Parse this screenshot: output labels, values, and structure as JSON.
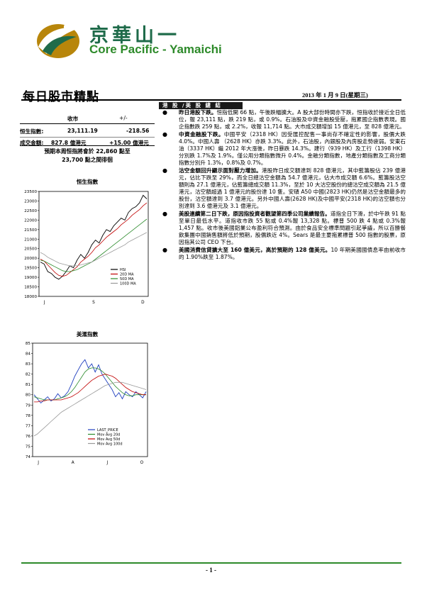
{
  "header": {
    "brand_cn": "京華山一",
    "brand_en": "Core Pacific - Yamaichi",
    "doc_title": "每日股市精點",
    "date": "2013 年 1 月 9 日(星期三)"
  },
  "market_table": {
    "col_close": "收市",
    "col_change": "+/-",
    "rows": [
      {
        "label": "恒生指數:",
        "close": "23,111.19",
        "change": "-218.56"
      },
      {
        "label": "成交金額:",
        "close": "827.8 億港元",
        "change": "+15.00 億港元"
      }
    ],
    "forecast_line1": "預期本周恒指將會於 22,860 點至",
    "forecast_line2": "23,700 點之間徘徊"
  },
  "hsi_chart": {
    "title": "恒生指數",
    "legend": [
      "HSI",
      "20D MA",
      "50D MA",
      "100D MA"
    ],
    "colors": {
      "price": "#000000",
      "ma20": "#c00000",
      "ma50": "#2a8a2a",
      "ma100": "#999999"
    }
  },
  "us_chart": {
    "title": "美滙指數",
    "legend": [
      "LAST_PRICE",
      "Mov Avg 20d",
      "Mov Avg 50d",
      "Mov Avg 100d"
    ],
    "colors": {
      "price": "#1f3fbf",
      "ma20": "#2a8a2a",
      "ma50": "#c00000",
      "ma100": "#999999"
    }
  },
  "chart_data": [
    {
      "type": "line",
      "title": "恒生指數",
      "x_ticks": [
        "J",
        "S",
        "D"
      ],
      "y_ticks": [
        18000,
        18500,
        19000,
        19500,
        20000,
        20500,
        21000,
        21500,
        22000,
        22500,
        23000,
        23500
      ],
      "ylim": [
        18000,
        23500
      ],
      "legend_position": "bottom-right",
      "series": [
        {
          "name": "HSI",
          "values": [
            19800,
            19700,
            19300,
            19200,
            19000,
            18900,
            19050,
            19300,
            19600,
            19500,
            19900,
            20200,
            20000,
            20300,
            20700,
            20950,
            20800,
            21200,
            21500,
            21400,
            21700,
            21900,
            22100,
            22000,
            22400,
            22600,
            22700,
            22900,
            23300,
            23111
          ]
        },
        {
          "name": "20D MA",
          "values": [
            19950,
            19850,
            19650,
            19450,
            19250,
            19100,
            19050,
            19100,
            19250,
            19400,
            19550,
            19800,
            19950,
            20100,
            20300,
            20550,
            20700,
            20900,
            21100,
            21250,
            21400,
            21550,
            21750,
            21900,
            22050,
            22250,
            22400,
            22550,
            22750,
            22900
          ]
        },
        {
          "name": "50D MA",
          "values": [
            19900,
            19850,
            19750,
            19650,
            19550,
            19450,
            19350,
            19300,
            19300,
            19350,
            19400,
            19500,
            19600,
            19700,
            19800,
            19950,
            20100,
            20250,
            20400,
            20550,
            20700,
            20850,
            21000,
            21150,
            21300,
            21450,
            21600,
            21750,
            21900,
            22050
          ]
        },
        {
          "name": "100D MA",
          "values": [
            20300,
            20200,
            20050,
            19950,
            19850,
            19750,
            19700,
            19650,
            19600,
            19600,
            19600,
            19650,
            19700,
            19750,
            19800,
            19900,
            20000,
            20100,
            20200,
            20300,
            20400,
            20500,
            20600,
            20700,
            20850,
            20950,
            21050,
            21150,
            21250,
            21350
          ]
        }
      ]
    },
    {
      "type": "line",
      "title": "美滙指數",
      "x_ticks": [
        "J",
        "A",
        "J",
        "O"
      ],
      "y_ticks": [
        74,
        75,
        76,
        77,
        78,
        79,
        80,
        81,
        82,
        83,
        84,
        85
      ],
      "ylim": [
        74,
        85
      ],
      "legend_position": "bottom-center",
      "series": [
        {
          "name": "LAST_PRICE",
          "values": [
            80.0,
            79.6,
            79.2,
            79.5,
            79.8,
            79.4,
            79.6,
            80.1,
            79.7,
            79.9,
            80.3,
            81.0,
            81.8,
            82.4,
            83.0,
            83.4,
            82.6,
            83.0,
            82.2,
            82.9,
            82.0,
            81.5,
            81.0,
            80.5,
            79.8,
            80.2,
            79.6,
            80.3,
            80.0,
            79.8,
            80.3,
            80.0,
            79.7,
            80.3
          ]
        },
        {
          "name": "Mov Avg 20d",
          "values": [
            79.8,
            79.7,
            79.6,
            79.5,
            79.5,
            79.5,
            79.5,
            79.6,
            79.7,
            79.8,
            80.0,
            80.3,
            80.7,
            81.2,
            81.7,
            82.2,
            82.5,
            82.6,
            82.6,
            82.5,
            82.3,
            82.0,
            81.6,
            81.2,
            80.8,
            80.5,
            80.2,
            80.0,
            79.9,
            79.9,
            80.0,
            80.0,
            80.0,
            80.0
          ]
        },
        {
          "name": "Mov Avg 50d",
          "values": [
            79.3,
            79.3,
            79.4,
            79.4,
            79.5,
            79.5,
            79.5,
            79.5,
            79.5,
            79.6,
            79.7,
            79.8,
            80.0,
            80.2,
            80.5,
            80.8,
            81.1,
            81.4,
            81.6,
            81.8,
            81.9,
            82.0,
            81.9,
            81.8,
            81.6,
            81.3,
            81.0,
            80.7,
            80.5,
            80.3,
            80.2,
            80.1,
            80.0,
            80.0
          ]
        },
        {
          "name": "Mov Avg 100d",
          "values": [
            76.0,
            76.2,
            76.5,
            76.8,
            77.1,
            77.4,
            77.7,
            78.0,
            78.3,
            78.5,
            78.7,
            78.9,
            79.1,
            79.3,
            79.5,
            79.7,
            79.9,
            80.1,
            80.3,
            80.5,
            80.7,
            80.9,
            81.0,
            81.1,
            81.2,
            81.2,
            81.2,
            81.1,
            81.0,
            80.9,
            80.8,
            80.7,
            80.6,
            80.5
          ]
        }
      ]
    }
  ],
  "section": {
    "label": "港 股 /美 股 總 結",
    "bullets": [
      {
        "lead": "昨日港股下跌。",
        "text": "恒指低開 66 點，午後跌幅擴大。A 股大部份時間亦下跌，恒指收於接近全日低位，報 23,111 點，跌 219 點，或 0.9%。石油股及中資金融股受壓，拖累國企指數表現。國企指數跌 259 點，或 2.2%，收報 11,714 點。大市成交額增加 15 億港元，至 828 億港元。"
      },
      {
        "lead": "中資金融股下跌。",
        "text": "中國平安（2318 HK）因受匯控配售一事尚存不確定性的影響，股價大跌 4.0%。中國人壽 （2628 HK）亦跌 3.3%。此外，石油股，內銀股及內房股走勢疲弱。安東石油（3337 HK）繼 2012 年大漲後，昨日暴跌 14.3%。建行（939 HK）及工行（1398 HK）分別跌 1.7%及 1.9%。僅公用分類指數微升 0.4%。金融分類指數，地產分類指數及工商分類指數分別升 1.3%，0.8%及 0.7%。"
      },
      {
        "lead": "沽空金額回升顯示面對壓力增加。",
        "text": "港股昨日成交額達到 828 億港元，其中藍籌股佔 239 億港元，佔比下跌至 29%，而全日總沽空金額為 54.7 億港元，佔大市成交額 6.6%。藍籌股沽空額則為 27.1 億港元，佔藍籌總成交額 11.3%，至於 10 大沽空股份的總沽空成交額為 21.5 億港元，沽空額超過 1 億港元的股份達 10 隻。安碩 A50 中國(2823 HK)仍然是沽空金額最多的股份，沽空額達到 3.7 億港元。另外中國人壽(2628 HK)及中國平安(2318 HK)的沽空額也分別達到 3.6 億港元及 3.1 億港元。"
      },
      {
        "lead": "美股連續第二日下跌，原因指投資者觀望第四季公司業績報告。",
        "text": "道指全日下滑，於中午跌 91 點至單日最低水平。道指收市跌 55 點或 0.4%報 13,328 點。標普 500 跌 4 點或 0.3%報 1,457 點。收市後美國鋁業公布盈利符合預測。由於食品安全標準問題引起爭議，所以百勝餐飲集團中國銷售額將低於預期，股價跌近 4%。Sears 是最主要拖累標普 500 指數的股票，原因指其公司 CEO 下台。"
      },
      {
        "lead": "美國消費信貸擴大至 160 億美元，高於預期的 128 億美元。",
        "text": "10 年期美國國債息率由前收市的 1.90%跌至 1.87%。"
      }
    ]
  },
  "footer": {
    "page": "- 1 -"
  }
}
